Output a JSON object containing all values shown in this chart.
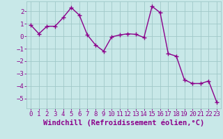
{
  "x": [
    0,
    1,
    2,
    3,
    4,
    5,
    6,
    7,
    8,
    9,
    10,
    11,
    12,
    13,
    14,
    15,
    16,
    17,
    18,
    19,
    20,
    21,
    22,
    23
  ],
  "y": [
    0.9,
    0.2,
    0.8,
    0.8,
    1.5,
    2.3,
    1.7,
    0.1,
    -0.7,
    -1.2,
    -0.05,
    0.1,
    0.2,
    0.15,
    -0.1,
    2.4,
    1.9,
    -1.4,
    -1.6,
    -3.5,
    -3.8,
    -3.8,
    -3.6,
    -5.3
  ],
  "line_color": "#8b008b",
  "marker": "+",
  "marker_size": 4,
  "bg_color": "#c8e8e8",
  "grid_color": "#a0c8c8",
  "xlabel": "Windchill (Refroidissement éolien,°C)",
  "xlabel_color": "#8b008b",
  "tick_color": "#8b008b",
  "ylim": [
    -5.8,
    2.8
  ],
  "yticks": [
    -5,
    -4,
    -3,
    -2,
    -1,
    0,
    1,
    2
  ],
  "xlim": [
    -0.5,
    23.5
  ],
  "xticks": [
    0,
    1,
    2,
    3,
    4,
    5,
    6,
    7,
    8,
    9,
    10,
    11,
    12,
    13,
    14,
    15,
    16,
    17,
    18,
    19,
    20,
    21,
    22,
    23
  ],
  "font_size": 6.5,
  "xlabel_fontsize": 7.5,
  "lw": 1.0,
  "marker_ew": 1.0
}
